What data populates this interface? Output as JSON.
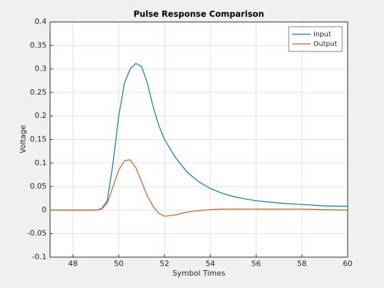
{
  "chart_data": {
    "type": "line",
    "title": "Pulse Response Comparison",
    "x_label": "Symbol Times",
    "y_label": "Voltage",
    "x": [
      47,
      47.5,
      48,
      48.5,
      49,
      49.25,
      49.5,
      49.75,
      50,
      50.25,
      50.5,
      50.75,
      51,
      51.25,
      51.5,
      51.75,
      52,
      52.5,
      53,
      53.5,
      54,
      54.5,
      55,
      55.5,
      56,
      57,
      58,
      59,
      60
    ],
    "series": [
      {
        "name": "Input",
        "color": "#0072bd",
        "values": [
          0,
          0,
          0,
          0,
          0,
          0.003,
          0.02,
          0.1,
          0.2,
          0.27,
          0.3,
          0.312,
          0.305,
          0.27,
          0.22,
          0.18,
          0.15,
          0.11,
          0.08,
          0.06,
          0.046,
          0.036,
          0.029,
          0.024,
          0.02,
          0.015,
          0.012,
          0.009,
          0.008
        ]
      },
      {
        "name": "Output",
        "color": "#d95319",
        "values": [
          0,
          0,
          0,
          0,
          0,
          0.002,
          0.015,
          0.05,
          0.085,
          0.105,
          0.107,
          0.09,
          0.06,
          0.03,
          0.008,
          -0.007,
          -0.013,
          -0.01,
          -0.004,
          -0.001,
          0.001,
          0.002,
          0.002,
          0.002,
          0.002,
          0.002,
          0.002,
          0.001,
          0
        ]
      }
    ],
    "xlim": [
      47,
      60
    ],
    "xticks": [
      48,
      50,
      52,
      54,
      56,
      58,
      60
    ],
    "ylim": [
      -0.1,
      0.4
    ],
    "yticks": [
      -0.1,
      -0.05,
      0,
      0.05,
      0.1,
      0.15,
      0.2,
      0.25,
      0.3,
      0.35,
      0.4
    ],
    "grid": true,
    "legend": "northeast"
  }
}
